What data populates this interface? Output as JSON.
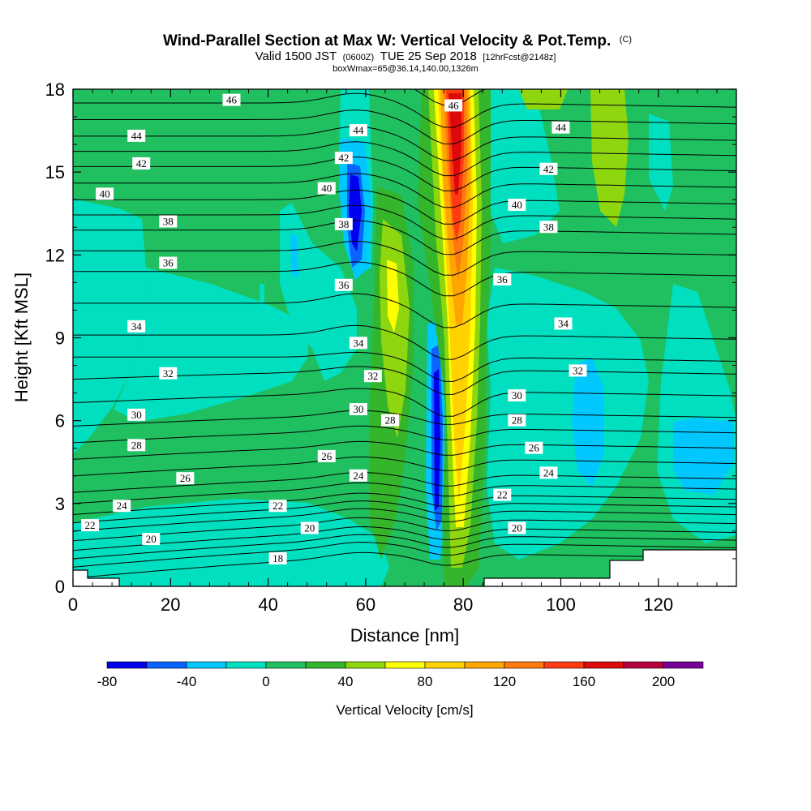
{
  "chart_data": {
    "type": "heatmap",
    "title": "Wind-Parallel Section at Max W: Vertical Velocity & Pot.Temp.",
    "title_tag": "(C)",
    "subtitle_parts": [
      "Valid 1500 JST",
      "(0600Z)",
      "TUE 25 Sep 2018",
      "[12hrFcst@2148z]"
    ],
    "subtitle2": "boxWmax=65@36.14,140.00,1326m",
    "xlabel": "Distance [nm]",
    "ylabel": "Height [Kft MSL]",
    "xlim": [
      0,
      136
    ],
    "ylim": [
      0,
      18
    ],
    "xticks": [
      0,
      20,
      40,
      60,
      80,
      100,
      120
    ],
    "yticks": [
      0,
      3,
      6,
      9,
      12,
      15,
      18
    ],
    "colorbar": {
      "label": "Vertical Velocity [cm/s]",
      "tick_labels": [
        "-80",
        "-40",
        "0",
        "40",
        "80",
        "120",
        "160",
        "200"
      ],
      "tick_values": [
        -80,
        -40,
        0,
        40,
        80,
        120,
        160,
        200
      ],
      "levels": [
        -80,
        -60,
        -40,
        -20,
        0,
        20,
        40,
        60,
        80,
        100,
        120,
        140,
        160,
        180,
        200,
        220
      ],
      "colors": [
        "#0000ee",
        "#0a64ff",
        "#00c8ff",
        "#00e0c0",
        "#20c060",
        "#34b52c",
        "#8ed60e",
        "#ffff00",
        "#ffd200",
        "#ffa500",
        "#ff7810",
        "#ff3c10",
        "#dc0a0a",
        "#b4003c",
        "#780096"
      ]
    },
    "theta_labels": [
      {
        "v": 46,
        "x": 32.5,
        "y": 17.6
      },
      {
        "v": 46,
        "x": 78,
        "y": 17.4
      },
      {
        "v": 44,
        "x": 13,
        "y": 16.3
      },
      {
        "v": 44,
        "x": 58.5,
        "y": 16.5
      },
      {
        "v": 44,
        "x": 100,
        "y": 16.6
      },
      {
        "v": 42,
        "x": 14,
        "y": 15.3
      },
      {
        "v": 42,
        "x": 55.5,
        "y": 15.5
      },
      {
        "v": 42,
        "x": 97.5,
        "y": 15.1
      },
      {
        "v": 40,
        "x": 6.5,
        "y": 14.2
      },
      {
        "v": 40,
        "x": 52,
        "y": 14.4
      },
      {
        "v": 40,
        "x": 91,
        "y": 13.8
      },
      {
        "v": 38,
        "x": 19.5,
        "y": 13.2
      },
      {
        "v": 38,
        "x": 55.5,
        "y": 13.1
      },
      {
        "v": 38,
        "x": 97.5,
        "y": 13.0
      },
      {
        "v": 36,
        "x": 19.5,
        "y": 11.7
      },
      {
        "v": 36,
        "x": 55.5,
        "y": 10.9
      },
      {
        "v": 36,
        "x": 88,
        "y": 11.1
      },
      {
        "v": 34,
        "x": 13,
        "y": 9.4
      },
      {
        "v": 34,
        "x": 58.5,
        "y": 8.8
      },
      {
        "v": 34,
        "x": 100.5,
        "y": 9.5
      },
      {
        "v": 32,
        "x": 19.5,
        "y": 7.7
      },
      {
        "v": 32,
        "x": 61.5,
        "y": 7.6
      },
      {
        "v": 32,
        "x": 103.5,
        "y": 7.8
      },
      {
        "v": 30,
        "x": 13,
        "y": 6.2
      },
      {
        "v": 30,
        "x": 58.5,
        "y": 6.4
      },
      {
        "v": 30,
        "x": 91,
        "y": 6.9
      },
      {
        "v": 28,
        "x": 13,
        "y": 5.1
      },
      {
        "v": 28,
        "x": 65,
        "y": 6.0
      },
      {
        "v": 28,
        "x": 91,
        "y": 6.0
      },
      {
        "v": 26,
        "x": 23,
        "y": 3.9
      },
      {
        "v": 26,
        "x": 52,
        "y": 4.7
      },
      {
        "v": 26,
        "x": 94.5,
        "y": 5.0
      },
      {
        "v": 24,
        "x": 10,
        "y": 2.9
      },
      {
        "v": 24,
        "x": 58.5,
        "y": 4.0
      },
      {
        "v": 24,
        "x": 97.5,
        "y": 4.1
      },
      {
        "v": 22,
        "x": 3.5,
        "y": 2.2
      },
      {
        "v": 22,
        "x": 42,
        "y": 2.9
      },
      {
        "v": 22,
        "x": 88,
        "y": 3.3
      },
      {
        "v": 20,
        "x": 16,
        "y": 1.7
      },
      {
        "v": 20,
        "x": 48.5,
        "y": 2.1
      },
      {
        "v": 20,
        "x": 91,
        "y": 2.1
      },
      {
        "v": 18,
        "x": 42,
        "y": 1.0
      }
    ]
  }
}
